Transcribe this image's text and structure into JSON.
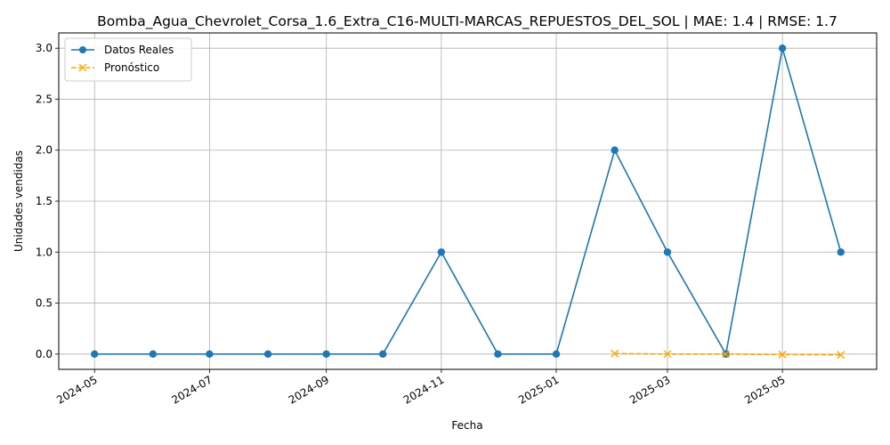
{
  "chart_data": {
    "type": "line",
    "title": "Bomba_Agua_Chevrolet_Corsa_1.6_Extra_C16-MULTI-MARCAS_REPUESTOS_DEL_SOL | MAE: 1.4 | RMSE: 1.7",
    "xlabel": "Fecha",
    "ylabel": "Unidades vendidas",
    "xlim": [
      "2024-04-12",
      "2025-06-20"
    ],
    "ylim": [
      -0.15,
      3.15
    ],
    "x_ticks": [
      "2024-05",
      "2024-07",
      "2024-09",
      "2024-11",
      "2025-01",
      "2025-03",
      "2025-05"
    ],
    "y_ticks": [
      "0.0",
      "0.5",
      "1.0",
      "1.5",
      "2.0",
      "2.5",
      "3.0"
    ],
    "grid": true,
    "legend_position": "top-left",
    "series": [
      {
        "name": "Datos Reales",
        "color": "#1f77b4",
        "marker": "circle",
        "linestyle": "solid",
        "x": [
          "2024-05-01",
          "2024-06-01",
          "2024-07-01",
          "2024-08-01",
          "2024-09-01",
          "2024-10-01",
          "2024-11-01",
          "2024-12-01",
          "2025-01-01",
          "2025-02-01",
          "2025-03-01",
          "2025-04-01",
          "2025-05-01",
          "2025-06-01"
        ],
        "values": [
          0,
          0,
          0,
          0,
          0,
          0,
          1,
          0,
          0,
          2,
          1,
          0,
          3,
          1
        ]
      },
      {
        "name": "Pronóstico",
        "color": "#ffa500",
        "marker": "x",
        "linestyle": "dashed",
        "x": [
          "2025-02-01",
          "2025-03-01",
          "2025-04-01",
          "2025-05-01",
          "2025-06-01"
        ],
        "values": [
          0.005,
          0.0,
          0.0,
          -0.005,
          -0.008
        ]
      }
    ]
  }
}
